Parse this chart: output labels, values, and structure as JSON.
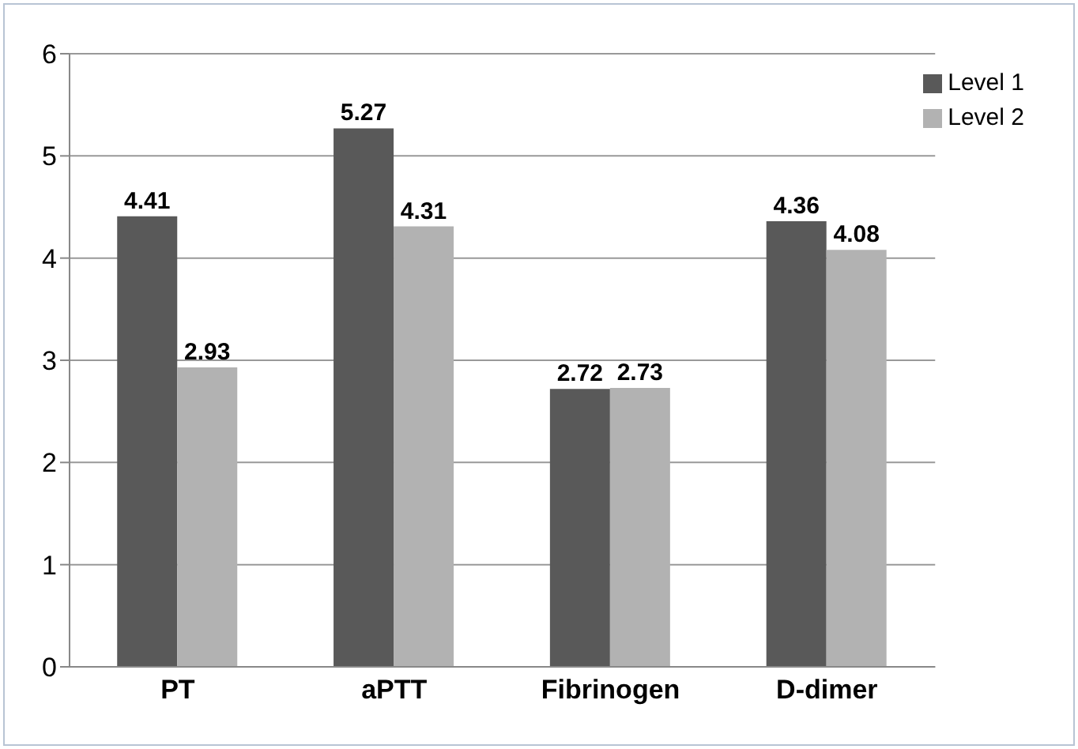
{
  "chart_data": {
    "type": "bar",
    "categories": [
      "PT",
      "aPTT",
      "Fibrinogen",
      "D-dimer"
    ],
    "series": [
      {
        "name": "Level 1",
        "color": "#595959",
        "values": [
          4.41,
          5.27,
          2.72,
          4.36
        ]
      },
      {
        "name": "Level 2",
        "color": "#b2b2b2",
        "values": [
          2.93,
          4.31,
          2.73,
          4.08
        ]
      }
    ],
    "ylim": [
      0,
      6
    ],
    "yticks": [
      0,
      1,
      2,
      3,
      4,
      5,
      6
    ],
    "grid": "y",
    "legend": "top right",
    "data_labels": true
  }
}
